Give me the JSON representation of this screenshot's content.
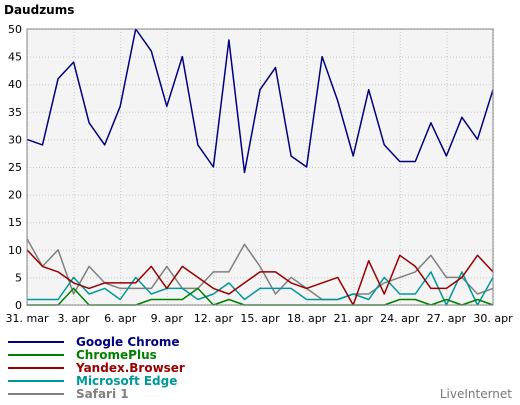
{
  "chart_data": {
    "type": "line",
    "title": "Daudzums",
    "xlabel": "",
    "ylabel": "",
    "ylim": [
      0,
      50
    ],
    "yticks": [
      0,
      5,
      10,
      15,
      20,
      25,
      30,
      35,
      40,
      45,
      50
    ],
    "grid": true,
    "legend_position": "bottom-left",
    "brand": "LiveInternet",
    "x_tick_labels": [
      "31. mar",
      "3. apr",
      "6. apr",
      "9. apr",
      "12. apr",
      "15. apr",
      "18. apr",
      "21. apr",
      "24. apr",
      "27. apr",
      "30. apr"
    ],
    "x": [
      "31. mar",
      "1. apr",
      "2. apr",
      "3. apr",
      "4. apr",
      "5. apr",
      "6. apr",
      "7. apr",
      "8. apr",
      "9. apr",
      "10. apr",
      "11. apr",
      "12. apr",
      "13. apr",
      "14. apr",
      "15. apr",
      "16. apr",
      "17. apr",
      "18. apr",
      "19. apr",
      "20. apr",
      "21. apr",
      "22. apr",
      "23. apr",
      "24. apr",
      "25. apr",
      "26. apr",
      "27. apr",
      "28. apr",
      "29. apr",
      "30. apr"
    ],
    "series": [
      {
        "name": "Google Chrome",
        "color": "#000080",
        "values": [
          30,
          29,
          41,
          44,
          33,
          29,
          36,
          50,
          46,
          36,
          45,
          29,
          25,
          48,
          24,
          39,
          43,
          27,
          25,
          45,
          37,
          27,
          39,
          29,
          26,
          26,
          33,
          27,
          34,
          30,
          39
        ]
      },
      {
        "name": "ChromePlus",
        "color": "#008000",
        "values": [
          0,
          0,
          0,
          3,
          0,
          0,
          0,
          0,
          1,
          1,
          1,
          3,
          0,
          1,
          0,
          0,
          0,
          0,
          0,
          0,
          0,
          0,
          0,
          0,
          1,
          1,
          0,
          1,
          0,
          1,
          0
        ]
      },
      {
        "name": "Yandex.Browser",
        "color": "#990000",
        "values": [
          10,
          7,
          6,
          4,
          3,
          4,
          4,
          4,
          7,
          3,
          7,
          5,
          3,
          2,
          4,
          6,
          6,
          4,
          3,
          4,
          5,
          0,
          8,
          2,
          9,
          7,
          3,
          3,
          5,
          9,
          6
        ]
      },
      {
        "name": "Microsoft Edge",
        "color": "#009999",
        "values": [
          1,
          1,
          1,
          5,
          2,
          3,
          1,
          5,
          2,
          3,
          3,
          1,
          2,
          4,
          1,
          3,
          3,
          3,
          1,
          1,
          1,
          2,
          1,
          5,
          2,
          2,
          6,
          0,
          6,
          0,
          5
        ]
      },
      {
        "name": "Safari 1",
        "color": "#808080",
        "values": [
          12,
          7,
          10,
          2,
          7,
          4,
          3,
          3,
          3,
          7,
          3,
          3,
          6,
          6,
          11,
          7,
          2,
          5,
          3,
          1,
          1,
          2,
          2,
          4,
          5,
          6,
          9,
          5,
          5,
          2,
          3
        ]
      }
    ]
  }
}
